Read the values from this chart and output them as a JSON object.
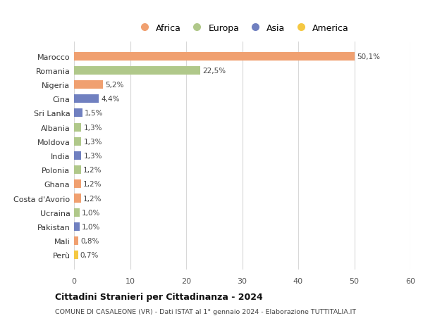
{
  "countries": [
    "Marocco",
    "Romania",
    "Nigeria",
    "Cina",
    "Sri Lanka",
    "Albania",
    "Moldova",
    "India",
    "Polonia",
    "Ghana",
    "Costa d'Avorio",
    "Ucraina",
    "Pakistan",
    "Mali",
    "Perù"
  ],
  "values": [
    50.1,
    22.5,
    5.2,
    4.4,
    1.5,
    1.3,
    1.3,
    1.3,
    1.2,
    1.2,
    1.2,
    1.0,
    1.0,
    0.8,
    0.7
  ],
  "labels": [
    "50,1%",
    "22,5%",
    "5,2%",
    "4,4%",
    "1,5%",
    "1,3%",
    "1,3%",
    "1,3%",
    "1,2%",
    "1,2%",
    "1,2%",
    "1,0%",
    "1,0%",
    "0,8%",
    "0,7%"
  ],
  "continents": [
    "Africa",
    "Europa",
    "Africa",
    "Asia",
    "Asia",
    "Europa",
    "Europa",
    "Asia",
    "Europa",
    "Africa",
    "Africa",
    "Europa",
    "Asia",
    "Africa",
    "America"
  ],
  "colors": {
    "Africa": "#F0A070",
    "Europa": "#B0C88A",
    "Asia": "#7080C0",
    "America": "#F5C842"
  },
  "legend_order": [
    "Africa",
    "Europa",
    "Asia",
    "America"
  ],
  "title": "Cittadini Stranieri per Cittadinanza - 2024",
  "subtitle": "COMUNE DI CASALEONE (VR) - Dati ISTAT al 1° gennaio 2024 - Elaborazione TUTTITALIA.IT",
  "xlim": [
    0,
    60
  ],
  "xticks": [
    0,
    10,
    20,
    30,
    40,
    50,
    60
  ],
  "background_color": "#ffffff",
  "grid_color": "#d8d8d8"
}
